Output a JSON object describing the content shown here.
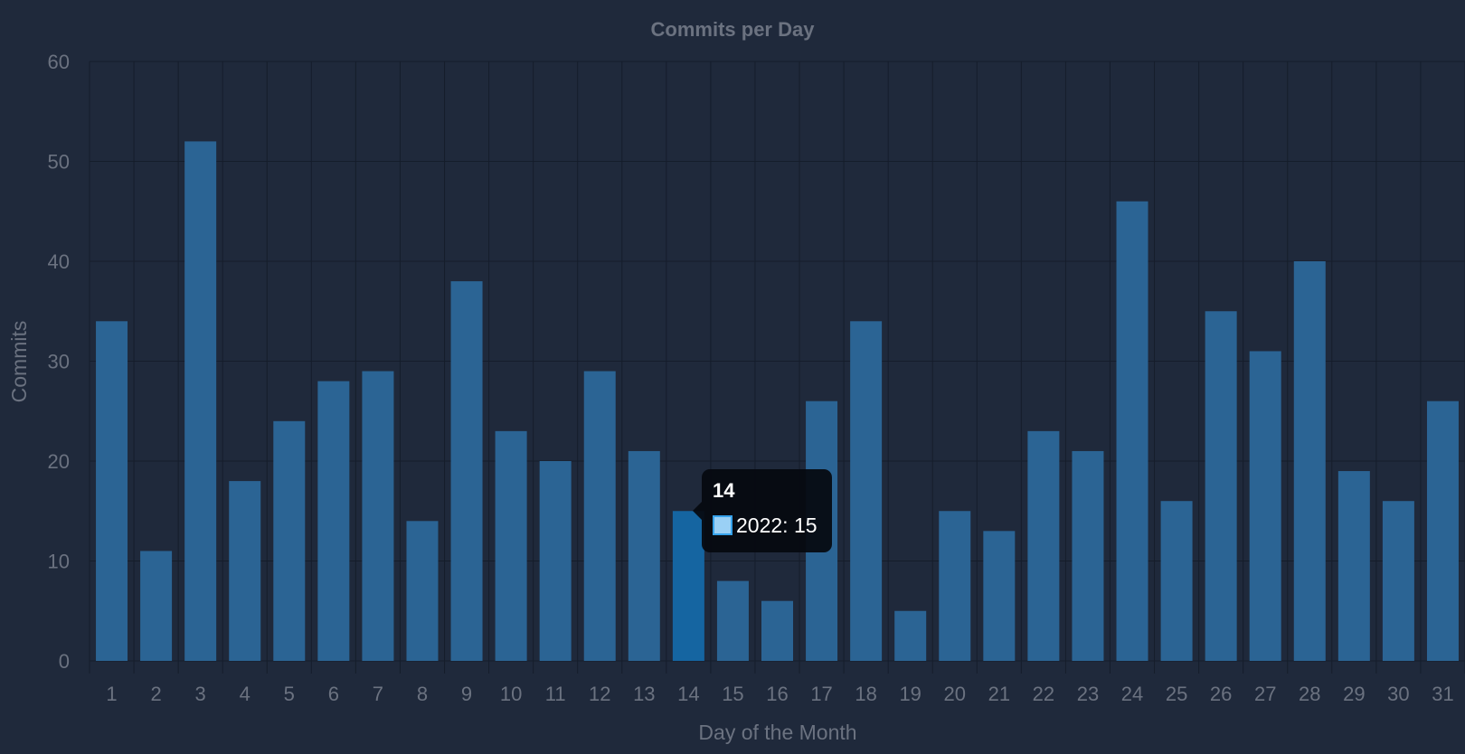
{
  "chart_data": {
    "type": "bar",
    "title": "Commits per Day",
    "xlabel": "Day of the Month",
    "ylabel": "Commits",
    "ylim": [
      0,
      60
    ],
    "yticks": [
      0,
      10,
      20,
      30,
      40,
      50,
      60
    ],
    "grid": true,
    "categories": [
      "1",
      "2",
      "3",
      "4",
      "5",
      "6",
      "7",
      "8",
      "9",
      "10",
      "11",
      "12",
      "13",
      "14",
      "15",
      "16",
      "17",
      "18",
      "19",
      "20",
      "21",
      "22",
      "23",
      "24",
      "25",
      "26",
      "27",
      "28",
      "29",
      "30",
      "31"
    ],
    "series": [
      {
        "name": "2022",
        "values": [
          34,
          11,
          52,
          18,
          24,
          28,
          29,
          14,
          38,
          23,
          20,
          29,
          21,
          15,
          8,
          6,
          26,
          34,
          5,
          15,
          13,
          23,
          21,
          46,
          16,
          35,
          31,
          40,
          19,
          16,
          26
        ],
        "color": "#2b6494",
        "highlight_color": "#1565a1"
      }
    ],
    "active_index": 13
  },
  "tooltip": {
    "title": "14",
    "label": "2022: 15",
    "swatch_fill": "#9ad0f5",
    "swatch_border": "#36a2eb"
  }
}
